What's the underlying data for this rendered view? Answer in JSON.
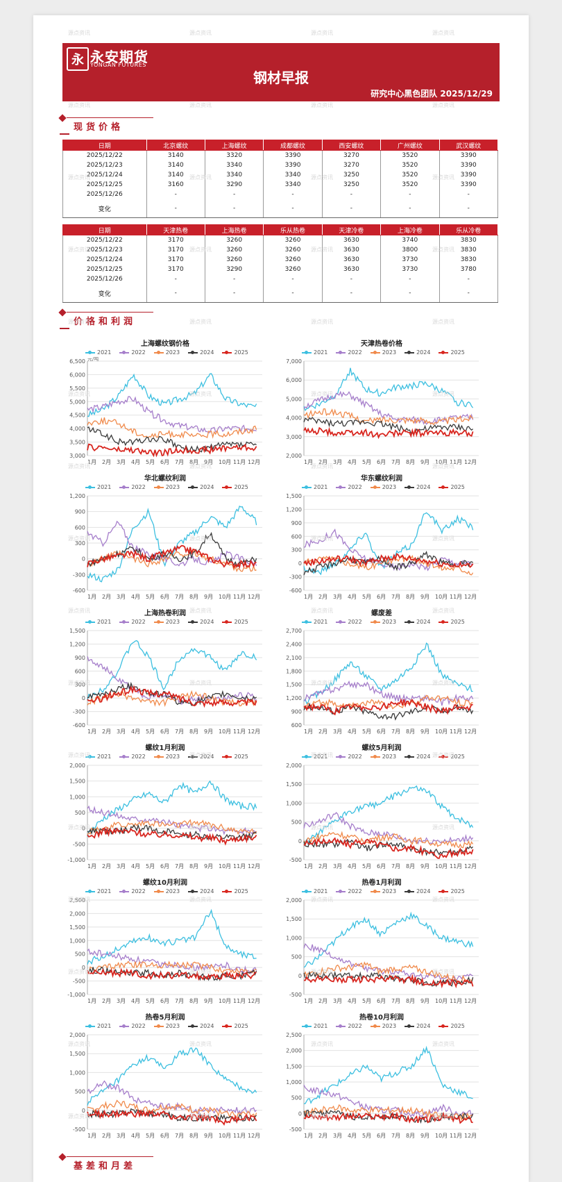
{
  "header": {
    "logo_cn": "永安期货",
    "logo_en": "YONGAN FUTURES",
    "title": "钢材早报",
    "subtitle": "研究中心黑色团队  2025/12/29"
  },
  "sections": {
    "spot": "现货价格",
    "profit": "价格和利润",
    "basis": "基差和月差"
  },
  "table1": {
    "headers": [
      "日期",
      "北京螺纹",
      "上海螺纹",
      "成都螺纹",
      "西安螺纹",
      "广州螺纹",
      "武汉螺纹"
    ],
    "rows": [
      [
        "2025/12/22",
        "3140",
        "3320",
        "3390",
        "3270",
        "3520",
        "3390"
      ],
      [
        "2025/12/23",
        "3140",
        "3340",
        "3390",
        "3270",
        "3520",
        "3390"
      ],
      [
        "2025/12/24",
        "3140",
        "3340",
        "3340",
        "3250",
        "3520",
        "3390"
      ],
      [
        "2025/12/25",
        "3160",
        "3290",
        "3340",
        "3250",
        "3520",
        "3390"
      ],
      [
        "2025/12/26",
        "-",
        "-",
        "-",
        "-",
        "-",
        "-"
      ],
      [
        "变化",
        "-",
        "-",
        "-",
        "-",
        "-",
        "-"
      ]
    ]
  },
  "table2": {
    "headers": [
      "日期",
      "天津热卷",
      "上海热卷",
      "乐从热卷",
      "天津冷卷",
      "上海冷卷",
      "乐从冷卷"
    ],
    "rows": [
      [
        "2025/12/22",
        "3170",
        "3260",
        "3260",
        "3630",
        "3740",
        "3830"
      ],
      [
        "2025/12/23",
        "3170",
        "3260",
        "3260",
        "3630",
        "3800",
        "3830"
      ],
      [
        "2025/12/24",
        "3170",
        "3260",
        "3260",
        "3630",
        "3730",
        "3830"
      ],
      [
        "2025/12/25",
        "3170",
        "3290",
        "3260",
        "3630",
        "3730",
        "3780"
      ],
      [
        "2025/12/26",
        "-",
        "-",
        "-",
        "-",
        "-",
        "-"
      ],
      [
        "变化",
        "-",
        "-",
        "-",
        "-",
        "-",
        "-"
      ]
    ]
  },
  "legend": [
    {
      "name": "2021",
      "color": "#3cbfe0"
    },
    {
      "name": "2022",
      "color": "#a67ecb"
    },
    {
      "name": "2023",
      "color": "#f08a4b"
    },
    {
      "name": "2024",
      "color": "#3a3a3a"
    },
    {
      "name": "2025",
      "color": "#d8261f"
    }
  ],
  "months": [
    "1月",
    "2月",
    "3月",
    "4月",
    "5月",
    "6月",
    "7月",
    "8月",
    "9月",
    "10月",
    "11月",
    "12月"
  ],
  "charts": [
    {
      "title": "上海螺纹钢价格",
      "unit": "元/吨",
      "yticks": [
        "6,500",
        "6,000",
        "5,500",
        "5,000",
        "4,500",
        "4,000",
        "3,500",
        "3,000"
      ],
      "ylim": [
        3000,
        6500
      ],
      "levels": {
        "2021": [
          4500,
          4700,
          5200,
          6000,
          5200,
          4900,
          5100,
          5300,
          6000,
          5100,
          4900,
          4800
        ],
        "2022": [
          4700,
          4800,
          5000,
          5100,
          4600,
          4300,
          4100,
          4000,
          3900,
          4000,
          4000,
          4000
        ],
        "2023": [
          4200,
          4300,
          4200,
          3900,
          3700,
          3800,
          3800,
          3700,
          3800,
          3800,
          3900,
          4000
        ],
        "2024": [
          4000,
          3800,
          3500,
          3500,
          3600,
          3600,
          3300,
          3200,
          3300,
          3400,
          3400,
          3400
        ],
        "2025": [
          3300,
          3300,
          3200,
          3200,
          3100,
          3100,
          3200,
          3200,
          3200,
          3300,
          3300,
          3300
        ]
      }
    },
    {
      "title": "天津热卷价格",
      "unit": "",
      "yticks": [
        "7,000",
        "6,000",
        "5,000",
        "4,000",
        "3,000",
        "2,000"
      ],
      "ylim": [
        2000,
        7000
      ],
      "levels": {
        "2021": [
          4500,
          4700,
          5200,
          6500,
          5500,
          5300,
          5600,
          5700,
          5800,
          5400,
          4800,
          4700
        ],
        "2022": [
          4600,
          4900,
          5200,
          5200,
          4700,
          4200,
          3900,
          3900,
          3800,
          3900,
          4000,
          4000
        ],
        "2023": [
          4100,
          4300,
          4300,
          4100,
          3800,
          3900,
          3900,
          3900,
          3800,
          3800,
          3900,
          4000
        ],
        "2024": [
          3900,
          3800,
          3700,
          3700,
          3800,
          3700,
          3500,
          3300,
          3400,
          3500,
          3500,
          3400
        ],
        "2025": [
          3300,
          3300,
          3200,
          3200,
          3200,
          3100,
          3200,
          3200,
          3200,
          3200,
          3200,
          3200
        ]
      }
    },
    {
      "title": "华北螺纹利润",
      "unit": "",
      "yticks": [
        "1,200",
        "900",
        "600",
        "300",
        "0",
        "-300",
        "-600"
      ],
      "ylim": [
        -600,
        1200
      ],
      "levels": {
        "2021": [
          -300,
          -400,
          -200,
          600,
          900,
          -100,
          300,
          500,
          800,
          600,
          1000,
          700
        ],
        "2022": [
          500,
          300,
          700,
          200,
          100,
          0,
          -100,
          0,
          -100,
          100,
          0,
          -100
        ],
        "2023": [
          -100,
          0,
          100,
          0,
          -100,
          0,
          100,
          100,
          0,
          -100,
          -200,
          -200
        ],
        "2024": [
          -100,
          0,
          100,
          200,
          0,
          100,
          0,
          100,
          500,
          0,
          -100,
          0
        ],
        "2025": [
          -100,
          0,
          50,
          100,
          0,
          100,
          200,
          150,
          0,
          -100,
          -100,
          -100
        ]
      }
    },
    {
      "title": "华东螺纹利润",
      "unit": "",
      "yticks": [
        "1,500",
        "1,200",
        "900",
        "600",
        "300",
        "0",
        "-300",
        "-600"
      ],
      "ylim": [
        -600,
        1500
      ],
      "levels": {
        "2021": [
          -100,
          -200,
          0,
          300,
          700,
          -100,
          200,
          400,
          1200,
          700,
          1000,
          800
        ],
        "2022": [
          400,
          500,
          700,
          300,
          100,
          0,
          -100,
          0,
          -100,
          100,
          0,
          0
        ],
        "2023": [
          0,
          100,
          100,
          0,
          -100,
          0,
          100,
          100,
          0,
          -100,
          -100,
          -200
        ],
        "2024": [
          -200,
          -100,
          0,
          100,
          0,
          100,
          -100,
          0,
          200,
          0,
          0,
          0
        ],
        "2025": [
          0,
          50,
          100,
          100,
          0,
          100,
          150,
          100,
          50,
          0,
          -50,
          -50
        ]
      }
    },
    {
      "title": "上海热卷利润",
      "unit": "",
      "yticks": [
        "1,500",
        "1,200",
        "900",
        "600",
        "300",
        "0",
        "-300",
        "-600"
      ],
      "ylim": [
        -600,
        1500
      ],
      "levels": {
        "2021": [
          0,
          200,
          600,
          1300,
          900,
          200,
          900,
          1100,
          900,
          600,
          1000,
          900
        ],
        "2022": [
          900,
          700,
          400,
          200,
          0,
          100,
          -100,
          0,
          0,
          0,
          100,
          0
        ],
        "2023": [
          -100,
          0,
          100,
          0,
          -100,
          -100,
          0,
          100,
          0,
          -100,
          -100,
          -100
        ],
        "2024": [
          0,
          100,
          200,
          300,
          100,
          100,
          -100,
          -100,
          0,
          100,
          0,
          0
        ],
        "2025": [
          -100,
          0,
          100,
          200,
          100,
          100,
          0,
          -100,
          -100,
          -100,
          -100,
          -100
        ]
      }
    },
    {
      "title": "螺废差",
      "unit": "",
      "yticks": [
        "2,700",
        "2,400",
        "2,100",
        "1,800",
        "1,500",
        "1,200",
        "900",
        "600"
      ],
      "ylim": [
        600,
        2700
      ],
      "levels": {
        "2021": [
          1100,
          1300,
          1600,
          2000,
          1700,
          1400,
          1600,
          1900,
          2400,
          1700,
          1500,
          1400
        ],
        "2022": [
          1200,
          1300,
          1400,
          1500,
          1500,
          1300,
          1200,
          1200,
          1200,
          1100,
          1200,
          1200
        ],
        "2023": [
          1000,
          1100,
          1100,
          1000,
          1100,
          1100,
          1000,
          1100,
          1200,
          1200,
          1100,
          1100
        ],
        "2024": [
          1000,
          1000,
          900,
          1000,
          900,
          800,
          800,
          900,
          1000,
          900,
          1000,
          900
        ],
        "2025": [
          1000,
          1000,
          900,
          1000,
          1000,
          1000,
          1100,
          1100,
          1000,
          900,
          1000,
          1000
        ]
      }
    },
    {
      "title": "螺纹1月利润",
      "unit": "",
      "yticks": [
        "2,000",
        "1,500",
        "1,000",
        "500",
        "0",
        "-500",
        "-1,000"
      ],
      "ylim": [
        -1000,
        2000
      ],
      "levels": {
        "2021": [
          -200,
          300,
          600,
          900,
          1100,
          800,
          1400,
          1100,
          1500,
          900,
          700,
          700
        ],
        "2022": [
          600,
          500,
          400,
          300,
          300,
          200,
          100,
          0,
          0,
          -100,
          -100,
          -100
        ],
        "2023": [
          -100,
          0,
          100,
          100,
          200,
          100,
          100,
          200,
          100,
          0,
          -100,
          -100
        ],
        "2024": [
          -100,
          -100,
          -100,
          0,
          0,
          -100,
          -200,
          -200,
          -300,
          -300,
          -300,
          -200
        ],
        "2025": [
          -300,
          -100,
          -100,
          -100,
          -200,
          -200,
          -200,
          -300,
          -300,
          -400,
          -300,
          -300
        ]
      }
    },
    {
      "title": "螺纹5月利润",
      "unit": "",
      "yticks": [
        "2,000",
        "1,500",
        "1,000",
        "500",
        "0",
        "-500"
      ],
      "ylim": [
        -500,
        2000
      ],
      "levels": {
        "2021": [
          -100,
          200,
          500,
          800,
          900,
          1000,
          1200,
          1400,
          1300,
          900,
          600,
          400
        ],
        "2022": [
          400,
          500,
          700,
          400,
          200,
          200,
          100,
          0,
          0,
          0,
          0,
          100
        ],
        "2023": [
          0,
          100,
          200,
          100,
          0,
          100,
          100,
          0,
          0,
          -100,
          -100,
          -100
        ],
        "2024": [
          -100,
          -100,
          -100,
          0,
          -200,
          -100,
          -100,
          -200,
          -300,
          -300,
          -300,
          -200
        ],
        "2025": [
          -100,
          0,
          0,
          -100,
          0,
          -100,
          -200,
          -200,
          -300,
          -400,
          -300,
          -300
        ]
      }
    },
    {
      "title": "螺纹10月利润",
      "unit": "",
      "yticks": [
        "2,500",
        "2,000",
        "1,500",
        "1,000",
        "500",
        "0",
        "-500",
        "-1,000"
      ],
      "ylim": [
        -1000,
        2500
      ],
      "levels": {
        "2021": [
          200,
          400,
          700,
          1000,
          1100,
          900,
          1000,
          1100,
          2100,
          800,
          500,
          400
        ],
        "2022": [
          600,
          500,
          400,
          300,
          200,
          100,
          100,
          0,
          0,
          100,
          -100,
          -100
        ],
        "2023": [
          -100,
          0,
          100,
          100,
          100,
          100,
          100,
          100,
          0,
          -100,
          -100,
          -100
        ],
        "2024": [
          -100,
          -100,
          -200,
          -200,
          -200,
          -300,
          -200,
          -300,
          -400,
          -300,
          -300,
          -200
        ],
        "2025": [
          -200,
          -200,
          -200,
          -200,
          -300,
          -300,
          -300,
          -300,
          -400,
          -300,
          -300,
          -300
        ]
      }
    },
    {
      "title": "热卷1月利润",
      "unit": "",
      "yticks": [
        "2,000",
        "1,500",
        "1,000",
        "500",
        "0",
        "-500"
      ],
      "ylim": [
        -500,
        2000
      ],
      "levels": {
        "2021": [
          200,
          500,
          900,
          1300,
          1500,
          1100,
          1400,
          1600,
          1300,
          1000,
          900,
          800
        ],
        "2022": [
          800,
          700,
          500,
          300,
          200,
          100,
          100,
          0,
          0,
          -100,
          -100,
          0
        ],
        "2023": [
          0,
          100,
          200,
          200,
          300,
          100,
          200,
          200,
          100,
          0,
          -100,
          -100
        ],
        "2024": [
          0,
          0,
          0,
          0,
          0,
          0,
          -100,
          -100,
          -200,
          -200,
          -200,
          -100
        ],
        "2025": [
          -100,
          -100,
          -100,
          -100,
          -100,
          -100,
          -100,
          -100,
          -200,
          -200,
          -200,
          -200
        ]
      }
    },
    {
      "title": "热卷5月利润",
      "unit": "",
      "yticks": [
        "2,000",
        "1,500",
        "1,000",
        "500",
        "0",
        "-500"
      ],
      "ylim": [
        -500,
        2000
      ],
      "levels": {
        "2021": [
          200,
          500,
          800,
          1200,
          1400,
          1100,
          1500,
          1600,
          1200,
          800,
          600,
          500
        ],
        "2022": [
          500,
          700,
          600,
          300,
          200,
          100,
          100,
          0,
          0,
          0,
          0,
          0
        ],
        "2023": [
          0,
          100,
          200,
          100,
          0,
          100,
          100,
          0,
          0,
          -100,
          -100,
          -100
        ],
        "2024": [
          -100,
          -100,
          -100,
          0,
          -100,
          -100,
          -200,
          -200,
          -200,
          -200,
          -200,
          -200
        ],
        "2025": [
          -100,
          -100,
          -100,
          -100,
          -100,
          -100,
          -200,
          -200,
          -200,
          -300,
          -200,
          -200
        ]
      }
    },
    {
      "title": "热卷10月利润",
      "unit": "",
      "yticks": [
        "2,500",
        "2,000",
        "1,500",
        "1,000",
        "500",
        "0",
        "-500"
      ],
      "ylim": [
        -500,
        2500
      ],
      "levels": {
        "2021": [
          300,
          600,
          900,
          1200,
          1500,
          1100,
          1300,
          1500,
          2100,
          900,
          700,
          500
        ],
        "2022": [
          800,
          700,
          600,
          400,
          200,
          100,
          100,
          0,
          0,
          200,
          0,
          0
        ],
        "2023": [
          0,
          100,
          200,
          100,
          100,
          100,
          100,
          100,
          0,
          -100,
          -100,
          -100
        ],
        "2024": [
          0,
          0,
          0,
          -100,
          -100,
          -100,
          -100,
          -200,
          -200,
          -100,
          -100,
          -100
        ],
        "2025": [
          -100,
          -100,
          -100,
          -100,
          -100,
          -100,
          -100,
          -200,
          -200,
          -100,
          -200,
          -200
        ]
      }
    }
  ],
  "watermark": [
    "源点资讯"
  ]
}
